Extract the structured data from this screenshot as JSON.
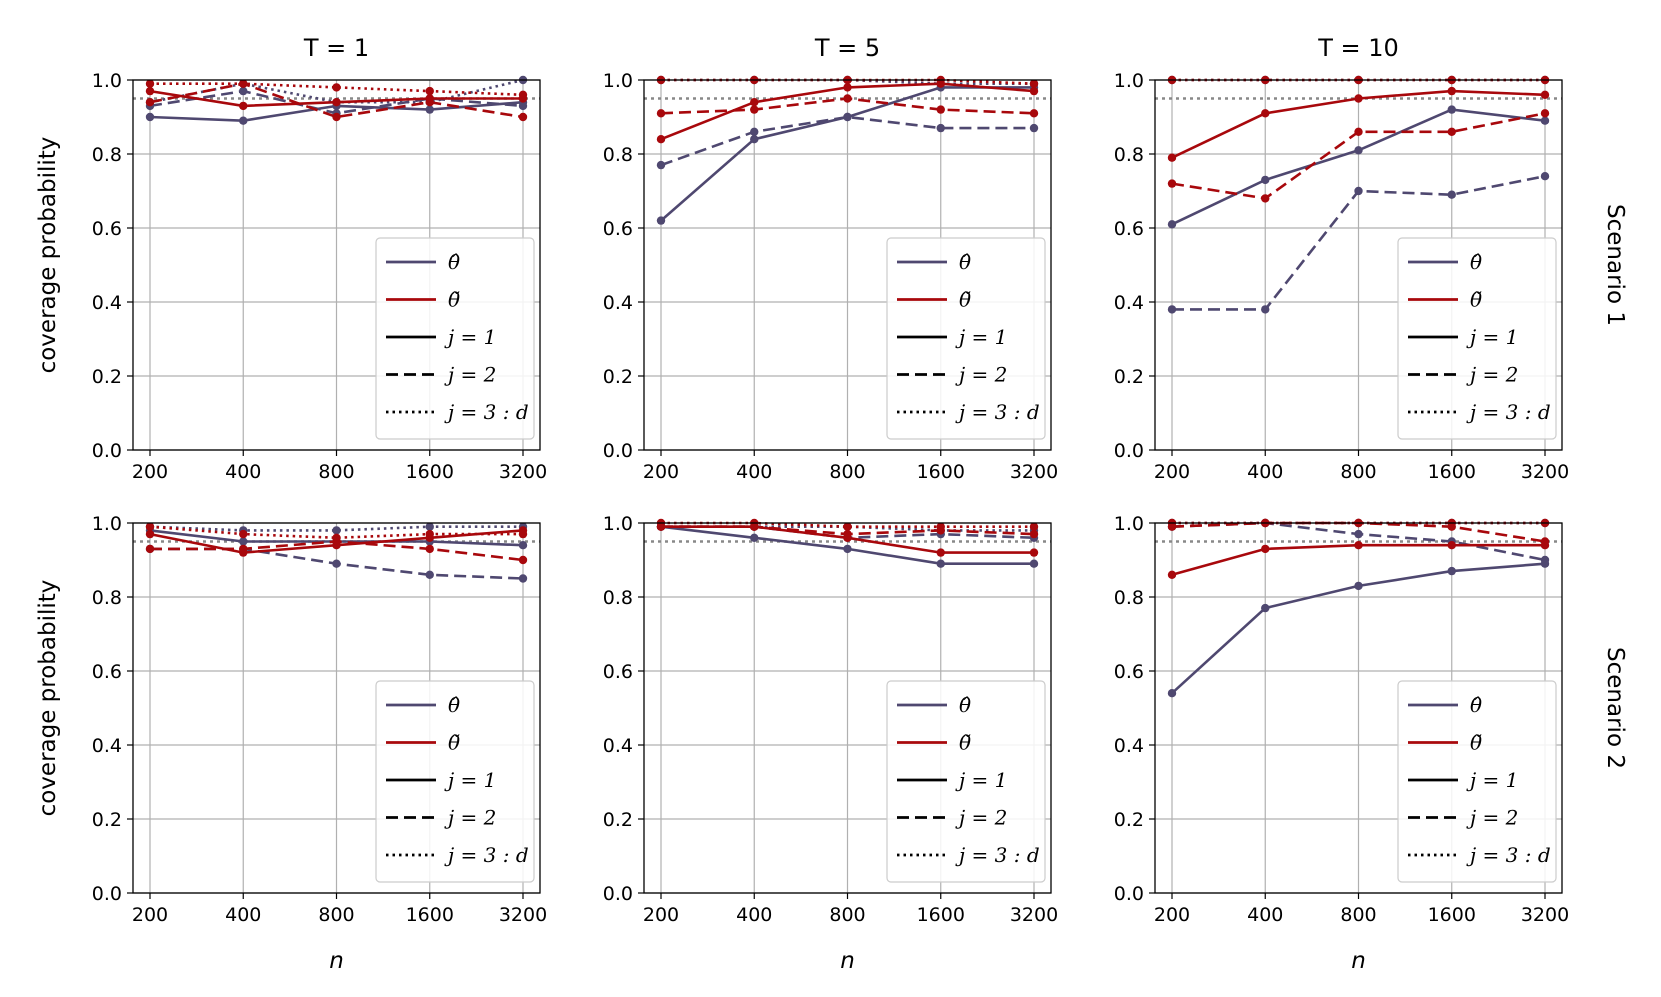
{
  "figure": {
    "col_titles": [
      "T = 1",
      "T = 5",
      "T = 10"
    ],
    "row_labels": [
      "Scenario 1",
      "Scenario 2"
    ],
    "xlabel": "n",
    "ylabel": "coverage probability",
    "colors": {
      "theta_hat": "#4f4870",
      "theta_tilde": "#a8080c",
      "reference": "#888888",
      "grid": "#b0b0b0"
    }
  },
  "legend": {
    "entries": [
      {
        "label": "θ̂",
        "color": "#4f4870",
        "style": "solid"
      },
      {
        "label": "θ̃",
        "color": "#a8080c",
        "style": "solid"
      },
      {
        "label": "j = 1",
        "color": "#000000",
        "style": "solid"
      },
      {
        "label": "j = 2",
        "color": "#000000",
        "style": "dashed"
      },
      {
        "label": "j = 3 : d",
        "color": "#000000",
        "style": "dotted"
      }
    ]
  },
  "chart_data": [
    {
      "type": "line",
      "title": "T = 1",
      "row": "Scenario 1",
      "x": [
        "200",
        "400",
        "800",
        "1600",
        "3200"
      ],
      "ylim": [
        0,
        1
      ],
      "yticks": [
        "0.0",
        "0.2",
        "0.4",
        "0.6",
        "0.8",
        "1.0"
      ],
      "reference_line": 0.95,
      "grid": true,
      "series": [
        {
          "estimator": "theta_hat",
          "j": "1",
          "values": [
            0.9,
            0.89,
            0.93,
            0.92,
            0.94
          ]
        },
        {
          "estimator": "theta_hat",
          "j": "2",
          "values": [
            0.93,
            0.97,
            0.91,
            0.95,
            0.93
          ]
        },
        {
          "estimator": "theta_hat",
          "j": "3:d",
          "values": [
            0.94,
            0.99,
            0.94,
            0.94,
            1.0
          ]
        },
        {
          "estimator": "theta_tilde",
          "j": "1",
          "values": [
            0.97,
            0.93,
            0.94,
            0.95,
            0.95
          ]
        },
        {
          "estimator": "theta_tilde",
          "j": "2",
          "values": [
            0.94,
            0.99,
            0.9,
            0.94,
            0.9
          ]
        },
        {
          "estimator": "theta_tilde",
          "j": "3:d",
          "values": [
            0.99,
            0.99,
            0.98,
            0.97,
            0.96
          ]
        }
      ]
    },
    {
      "type": "line",
      "title": "T = 5",
      "row": "Scenario 1",
      "x": [
        "200",
        "400",
        "800",
        "1600",
        "3200"
      ],
      "ylim": [
        0,
        1
      ],
      "yticks": [
        "0.0",
        "0.2",
        "0.4",
        "0.6",
        "0.8",
        "1.0"
      ],
      "reference_line": 0.95,
      "grid": true,
      "series": [
        {
          "estimator": "theta_hat",
          "j": "1",
          "values": [
            0.62,
            0.84,
            0.9,
            0.98,
            0.98
          ]
        },
        {
          "estimator": "theta_hat",
          "j": "2",
          "values": [
            0.77,
            0.86,
            0.9,
            0.87,
            0.87
          ]
        },
        {
          "estimator": "theta_hat",
          "j": "3:d",
          "values": [
            1.0,
            1.0,
            1.0,
            0.99,
            0.99
          ]
        },
        {
          "estimator": "theta_tilde",
          "j": "1",
          "values": [
            0.84,
            0.94,
            0.98,
            0.99,
            0.97
          ]
        },
        {
          "estimator": "theta_tilde",
          "j": "2",
          "values": [
            0.91,
            0.92,
            0.95,
            0.92,
            0.91
          ]
        },
        {
          "estimator": "theta_tilde",
          "j": "3:d",
          "values": [
            1.0,
            1.0,
            1.0,
            1.0,
            0.99
          ]
        }
      ]
    },
    {
      "type": "line",
      "title": "T = 10",
      "row": "Scenario 1",
      "x": [
        "200",
        "400",
        "800",
        "1600",
        "3200"
      ],
      "ylim": [
        0,
        1
      ],
      "yticks": [
        "0.0",
        "0.2",
        "0.4",
        "0.6",
        "0.8",
        "1.0"
      ],
      "reference_line": 0.95,
      "grid": true,
      "series": [
        {
          "estimator": "theta_hat",
          "j": "1",
          "values": [
            0.61,
            0.73,
            0.81,
            0.92,
            0.89
          ]
        },
        {
          "estimator": "theta_hat",
          "j": "2",
          "values": [
            0.38,
            0.38,
            0.7,
            0.69,
            0.74
          ]
        },
        {
          "estimator": "theta_hat",
          "j": "3:d",
          "values": [
            1.0,
            1.0,
            1.0,
            1.0,
            1.0
          ]
        },
        {
          "estimator": "theta_tilde",
          "j": "1",
          "values": [
            0.79,
            0.91,
            0.95,
            0.97,
            0.96
          ]
        },
        {
          "estimator": "theta_tilde",
          "j": "2",
          "values": [
            0.72,
            0.68,
            0.86,
            0.86,
            0.91
          ]
        },
        {
          "estimator": "theta_tilde",
          "j": "3:d",
          "values": [
            1.0,
            1.0,
            1.0,
            1.0,
            1.0
          ]
        }
      ]
    },
    {
      "type": "line",
      "title": "T = 1",
      "row": "Scenario 2",
      "x": [
        "200",
        "400",
        "800",
        "1600",
        "3200"
      ],
      "ylim": [
        0,
        1
      ],
      "yticks": [
        "0.0",
        "0.2",
        "0.4",
        "0.6",
        "0.8",
        "1.0"
      ],
      "reference_line": 0.95,
      "grid": true,
      "series": [
        {
          "estimator": "theta_hat",
          "j": "1",
          "values": [
            0.98,
            0.95,
            0.95,
            0.95,
            0.94
          ]
        },
        {
          "estimator": "theta_hat",
          "j": "2",
          "values": [
            0.93,
            0.93,
            0.89,
            0.86,
            0.85
          ]
        },
        {
          "estimator": "theta_hat",
          "j": "3:d",
          "values": [
            0.99,
            0.98,
            0.98,
            0.99,
            0.99
          ]
        },
        {
          "estimator": "theta_tilde",
          "j": "1",
          "values": [
            0.97,
            0.92,
            0.94,
            0.96,
            0.98
          ]
        },
        {
          "estimator": "theta_tilde",
          "j": "2",
          "values": [
            0.93,
            0.93,
            0.95,
            0.93,
            0.9
          ]
        },
        {
          "estimator": "theta_tilde",
          "j": "3:d",
          "values": [
            0.99,
            0.97,
            0.96,
            0.97,
            0.97
          ]
        }
      ]
    },
    {
      "type": "line",
      "title": "T = 5",
      "row": "Scenario 2",
      "x": [
        "200",
        "400",
        "800",
        "1600",
        "3200"
      ],
      "ylim": [
        0,
        1
      ],
      "yticks": [
        "0.0",
        "0.2",
        "0.4",
        "0.6",
        "0.8",
        "1.0"
      ],
      "reference_line": 0.95,
      "grid": true,
      "series": [
        {
          "estimator": "theta_hat",
          "j": "1",
          "values": [
            0.99,
            0.96,
            0.93,
            0.89,
            0.89
          ]
        },
        {
          "estimator": "theta_hat",
          "j": "2",
          "values": [
            0.99,
            0.99,
            0.96,
            0.97,
            0.96
          ]
        },
        {
          "estimator": "theta_hat",
          "j": "3:d",
          "values": [
            0.99,
            0.99,
            0.99,
            0.98,
            0.98
          ]
        },
        {
          "estimator": "theta_tilde",
          "j": "1",
          "values": [
            0.99,
            0.99,
            0.96,
            0.92,
            0.92
          ]
        },
        {
          "estimator": "theta_tilde",
          "j": "2",
          "values": [
            0.99,
            0.99,
            0.97,
            0.98,
            0.97
          ]
        },
        {
          "estimator": "theta_tilde",
          "j": "3:d",
          "values": [
            1.0,
            1.0,
            0.99,
            0.99,
            0.99
          ]
        }
      ]
    },
    {
      "type": "line",
      "title": "T = 10",
      "row": "Scenario 2",
      "x": [
        "200",
        "400",
        "800",
        "1600",
        "3200"
      ],
      "ylim": [
        0,
        1
      ],
      "yticks": [
        "0.0",
        "0.2",
        "0.4",
        "0.6",
        "0.8",
        "1.0"
      ],
      "reference_line": 0.95,
      "grid": true,
      "series": [
        {
          "estimator": "theta_hat",
          "j": "1",
          "values": [
            0.54,
            0.77,
            0.83,
            0.87,
            0.89
          ]
        },
        {
          "estimator": "theta_hat",
          "j": "2",
          "values": [
            0.99,
            1.0,
            0.97,
            0.95,
            0.9
          ]
        },
        {
          "estimator": "theta_hat",
          "j": "3:d",
          "values": [
            1.0,
            1.0,
            1.0,
            1.0,
            1.0
          ]
        },
        {
          "estimator": "theta_tilde",
          "j": "1",
          "values": [
            0.86,
            0.93,
            0.94,
            0.94,
            0.94
          ]
        },
        {
          "estimator": "theta_tilde",
          "j": "2",
          "values": [
            0.99,
            1.0,
            1.0,
            0.99,
            0.95
          ]
        },
        {
          "estimator": "theta_tilde",
          "j": "3:d",
          "values": [
            1.0,
            1.0,
            1.0,
            1.0,
            1.0
          ]
        }
      ]
    }
  ]
}
